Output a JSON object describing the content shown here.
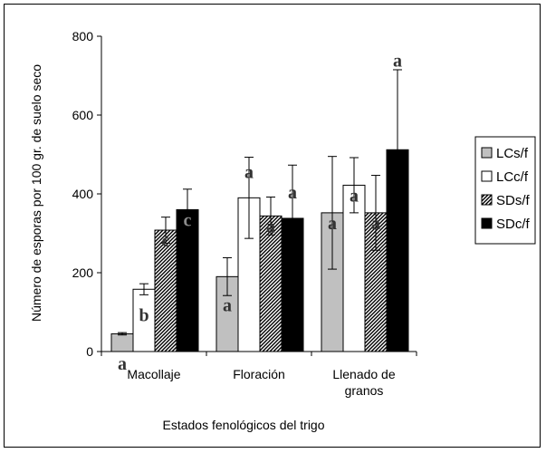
{
  "chart_data": {
    "type": "bar",
    "xlabel": "Estados fenológicos del trigo",
    "ylabel": "Número de esporas por 100 gr. de suelo seco",
    "ylim": [
      0,
      800
    ],
    "yticks": [
      "0",
      "200",
      "400",
      "600",
      "800"
    ],
    "grid": false,
    "legend_position": "right",
    "categories": [
      {
        "lines": [
          "Macollaje"
        ]
      },
      {
        "lines": [
          "Floración"
        ]
      },
      {
        "lines": [
          "Llenado de",
          "granos"
        ]
      }
    ],
    "series": [
      {
        "name": "LCs/f",
        "fill": "#c0c0c0",
        "pattern": "solid",
        "values": [
          45,
          190,
          352
        ],
        "errors": [
          3,
          48,
          143
        ],
        "letters": [
          "a",
          "a",
          "a"
        ]
      },
      {
        "name": "LCc/f",
        "fill": "#ffffff",
        "pattern": "solid",
        "values": [
          158,
          390,
          422
        ],
        "errors": [
          14,
          103,
          70
        ],
        "letters": [
          "b",
          "a",
          "a"
        ]
      },
      {
        "name": "SDs/f",
        "fill": "#808080",
        "pattern": "hatch",
        "values": [
          308,
          344,
          352
        ],
        "errors": [
          33,
          48,
          95
        ],
        "letters": [
          "c",
          "a",
          "a"
        ]
      },
      {
        "name": "SDc/f",
        "fill": "#000000",
        "pattern": "solid",
        "values": [
          360,
          338,
          512
        ],
        "errors": [
          52,
          135,
          203
        ],
        "letters": [
          "c",
          "a",
          "a"
        ]
      }
    ]
  }
}
